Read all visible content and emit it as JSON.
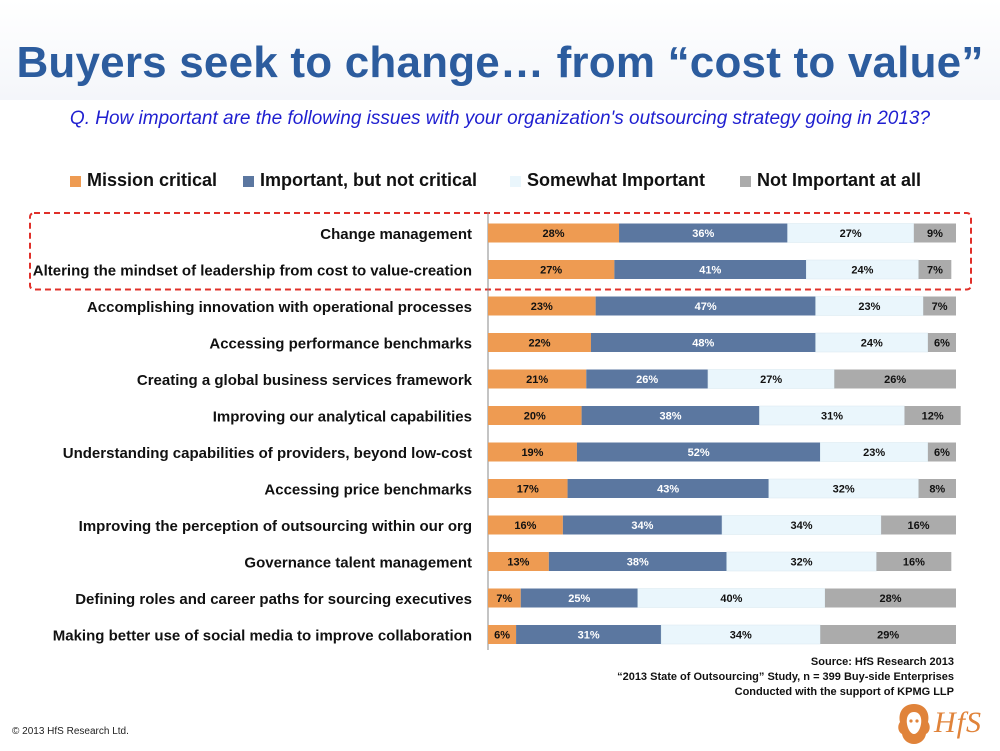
{
  "title": "Buyers seek to change… from “cost to value”",
  "question": "Q. How important are the following issues with your organization's outsourcing strategy going in 2013?",
  "source_lines": [
    "Source: HfS Research 2013",
    "“2013 State of Outsourcing” Study, n = 399 Buy-side Enterprises",
    "Conducted with the support of KPMG LLP"
  ],
  "copyright": "© 2013 HfS Research Ltd.",
  "logo_text": "HfS",
  "colors": {
    "title": "#2c5c9e",
    "question": "#1f1fd0",
    "mission_critical": "#ee9b52",
    "important": "#5b77a0",
    "somewhat": "#eaf6fc",
    "not_important": "#ababab",
    "highlight_box": "#e0302a"
  },
  "chart_data": {
    "type": "bar",
    "orientation": "horizontal",
    "stacked": true,
    "percent": true,
    "xlim": [
      0,
      100
    ],
    "legend_position": "top",
    "highlighted_categories": [
      "Change management",
      "Altering the mindset of leadership from cost to value-creation"
    ],
    "categories": [
      "Change management",
      "Altering the mindset of leadership from cost to value-creation",
      "Accomplishing innovation with operational processes",
      "Accessing performance benchmarks",
      "Creating a global business services framework",
      "Improving our analytical capabilities",
      "Understanding capabilities of providers, beyond low-cost",
      "Accessing price benchmarks",
      "Improving the perception of outsourcing within our org",
      "Governance talent management",
      "Defining roles and career paths for sourcing executives",
      "Making better use of social media to improve collaboration"
    ],
    "series": [
      {
        "name": "Mission critical",
        "color": "#ee9b52",
        "values": [
          28,
          27,
          23,
          22,
          21,
          20,
          19,
          17,
          16,
          13,
          7,
          6
        ]
      },
      {
        "name": "Important, but not critical",
        "color": "#5b77a0",
        "values": [
          36,
          41,
          47,
          48,
          26,
          38,
          52,
          43,
          34,
          38,
          25,
          31
        ]
      },
      {
        "name": "Somewhat Important",
        "color": "#eaf6fc",
        "values": [
          27,
          24,
          23,
          24,
          27,
          31,
          23,
          32,
          34,
          32,
          40,
          34
        ]
      },
      {
        "name": "Not Important at all",
        "color": "#ababab",
        "values": [
          9,
          7,
          7,
          6,
          26,
          12,
          6,
          8,
          16,
          16,
          28,
          29
        ]
      }
    ]
  }
}
